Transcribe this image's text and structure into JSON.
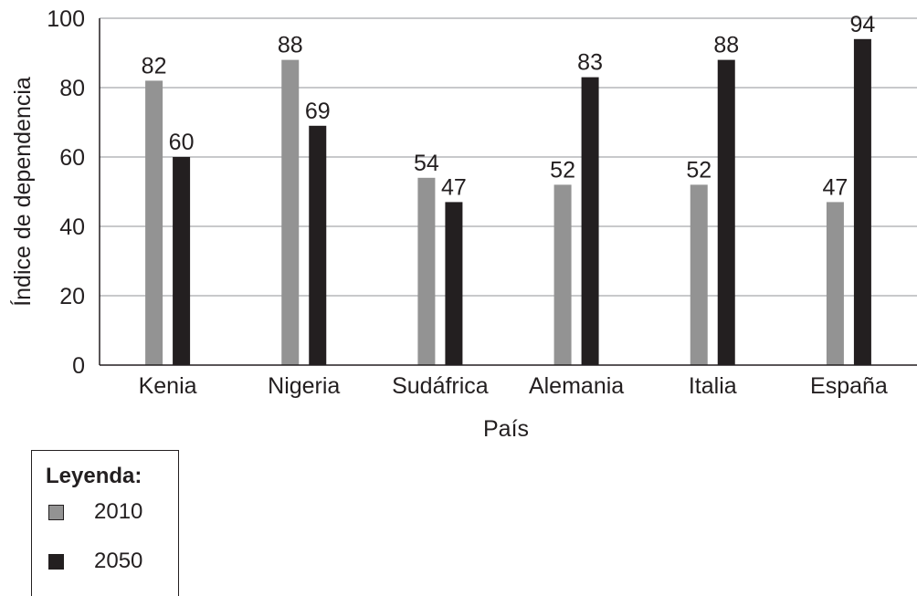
{
  "chart_data": {
    "type": "bar",
    "xlabel": "País",
    "ylabel": "Índice de dependencia",
    "ylim": [
      0,
      100
    ],
    "yticks": [
      0,
      20,
      40,
      60,
      80,
      100
    ],
    "grid": true,
    "categories": [
      "Kenia",
      "Nigeria",
      "Sudáfrica",
      "Alemania",
      "Italia",
      "España"
    ],
    "series": [
      {
        "name": "2010",
        "color": "#939393",
        "values": [
          82,
          88,
          54,
          52,
          52,
          47
        ]
      },
      {
        "name": "2050",
        "color": "#231f20",
        "values": [
          60,
          69,
          47,
          83,
          88,
          94
        ]
      }
    ],
    "legend": {
      "title": "Leyenda:",
      "placement": "bottom-left"
    }
  }
}
